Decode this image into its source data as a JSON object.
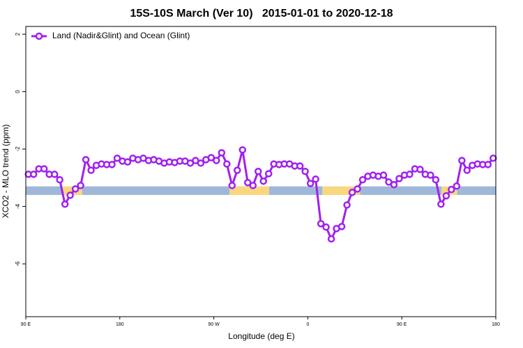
{
  "chart_data": {
    "type": "line",
    "title": "15S-10S March (Ver 10)   2015-01-01 to 2020-12-18",
    "xlabel": "Longitude (deg E)",
    "ylabel": "XCO2 - MLO trend (ppm)",
    "x": [
      92.5,
      97.5,
      102.5,
      107.5,
      112.5,
      117.5,
      122.5,
      127.5,
      132.5,
      137.5,
      142.5,
      147.5,
      152.5,
      157.5,
      162.5,
      167.5,
      172.5,
      177.5,
      182.5,
      187.5,
      192.5,
      197.5,
      202.5,
      207.5,
      212.5,
      217.5,
      222.5,
      227.5,
      232.5,
      237.5,
      242.5,
      247.5,
      252.5,
      257.5,
      262.5,
      267.5,
      272.5,
      277.5,
      282.5,
      287.5,
      292.5,
      297.5,
      302.5,
      307.5,
      312.5,
      317.5,
      322.5,
      327.5,
      332.5,
      337.5,
      342.5,
      347.5,
      352.5,
      357.5,
      362.5,
      367.5,
      372.5,
      377.5,
      382.5,
      387.5,
      392.5,
      397.5,
      402.5,
      407.5,
      412.5,
      417.5,
      422.5,
      427.5,
      432.5,
      437.5,
      442.5,
      447.5,
      452.5,
      457.5,
      462.5,
      467.5,
      472.5,
      477.5,
      482.5,
      487.5,
      492.5,
      497.5,
      502.5,
      507.5,
      512.5,
      517.5,
      522.5,
      527.5,
      532.5,
      537.5
    ],
    "series": [
      {
        "name": "Land (Nadir&Glint) and Ocean (Glint)",
        "color": "#a020f0",
        "values": [
          -2.88,
          -2.88,
          -2.69,
          -2.69,
          -2.88,
          -2.88,
          -3.07,
          -3.92,
          -3.61,
          -3.39,
          -3.27,
          -2.37,
          -2.74,
          -2.57,
          -2.52,
          -2.54,
          -2.54,
          -2.32,
          -2.42,
          -2.45,
          -2.32,
          -2.37,
          -2.32,
          -2.4,
          -2.37,
          -2.42,
          -2.49,
          -2.45,
          -2.47,
          -2.42,
          -2.42,
          -2.49,
          -2.4,
          -2.49,
          -2.37,
          -2.3,
          -2.4,
          -2.13,
          -2.52,
          -3.27,
          -2.74,
          -2.03,
          -3.17,
          -3.27,
          -2.78,
          -3.12,
          -2.86,
          -2.52,
          -2.54,
          -2.52,
          -2.52,
          -2.59,
          -2.59,
          -2.78,
          -3.2,
          -3.05,
          -4.6,
          -4.72,
          -5.13,
          -4.77,
          -4.7,
          -3.95,
          -3.51,
          -3.39,
          -3.07,
          -2.95,
          -2.91,
          -2.95,
          -2.91,
          -3.15,
          -3.24,
          -3.03,
          -2.91,
          -2.88,
          -2.69,
          -2.71,
          -2.88,
          -2.91,
          -3.07,
          -3.92,
          -3.63,
          -3.41,
          -3.29,
          -2.4,
          -2.74,
          -2.57,
          -2.52,
          -2.54,
          -2.54,
          -2.32
        ]
      }
    ],
    "band_ylim": [
      -3.6,
      -3.3
    ],
    "band_segments": [
      {
        "start": 90,
        "end": 125,
        "color": "#9fb8d9"
      },
      {
        "start": 125,
        "end": 144,
        "color": "#f9d77e"
      },
      {
        "start": 144,
        "end": 285,
        "color": "#9fb8d9"
      },
      {
        "start": 285,
        "end": 323,
        "color": "#f9d77e"
      },
      {
        "start": 323,
        "end": 374,
        "color": "#9fb8d9"
      },
      {
        "start": 374,
        "end": 410,
        "color": "#f9d77e"
      },
      {
        "start": 410,
        "end": 488,
        "color": "#9fb8d9"
      },
      {
        "start": 488,
        "end": 503,
        "color": "#f9d77e"
      },
      {
        "start": 503,
        "end": 540,
        "color": "#9fb8d9"
      }
    ],
    "xlim": [
      90,
      540
    ],
    "ylim": [
      -7.84,
      2.27
    ],
    "xticks": [
      {
        "value": 90,
        "label": "90 E"
      },
      180,
      {
        "value": 270,
        "label": "90 W"
      },
      {
        "value": 360,
        "label": "0"
      },
      {
        "value": 450,
        "label": "90 E"
      },
      {
        "value": 540,
        "label": "180"
      }
    ],
    "yticks": [
      2,
      0,
      -2,
      -4,
      -6
    ],
    "legend": "top-left"
  }
}
